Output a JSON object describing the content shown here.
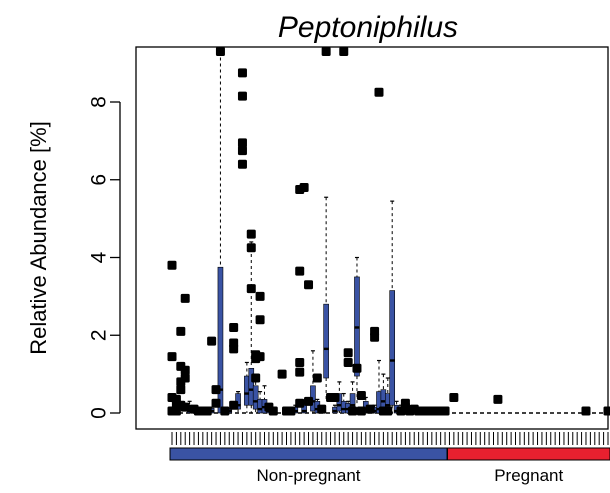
{
  "chart_data": {
    "type": "box",
    "title": "Peptoniphilus",
    "ylabel": "Relative Abundance [%]",
    "xlabel": "",
    "ylim": [
      -0.3,
      9.4
    ],
    "yticks": [
      0,
      2,
      4,
      6,
      8
    ],
    "ytick_labels": [
      "0",
      "2",
      "4",
      "6",
      "8"
    ],
    "grid": false,
    "groups": [
      {
        "name": "Non-pregnant",
        "color": "#3A53A4",
        "first": 1,
        "last": 63
      },
      {
        "name": "Pregnant",
        "color": "#E8202F",
        "first": 64,
        "last": 100
      }
    ],
    "n_samples": 100,
    "box_color": "#3A53A4",
    "boxes": [
      {
        "i": 5,
        "q1": 0,
        "median": 0.05,
        "q3": 0.2,
        "whisker_low": 0,
        "whisker_high": 0.3
      },
      {
        "i": 10,
        "q1": 0,
        "median": 0.05,
        "q3": 0.12,
        "whisker_low": 0,
        "whisker_high": 0.15
      },
      {
        "i": 12,
        "q1": 0,
        "median": 0.6,
        "q3": 3.75,
        "whisker_low": 0,
        "whisker_high": 9.3
      },
      {
        "i": 14,
        "q1": 0,
        "median": 0.05,
        "q3": 0.1,
        "whisker_low": 0,
        "whisker_high": 0.1
      },
      {
        "i": 16,
        "q1": 0.1,
        "median": 0.2,
        "q3": 0.5,
        "whisker_low": 0,
        "whisker_high": 0.55
      },
      {
        "i": 18,
        "q1": 0.2,
        "median": 0.5,
        "q3": 0.95,
        "whisker_low": 0,
        "whisker_high": 1.3
      },
      {
        "i": 19,
        "q1": 0.2,
        "median": 0.6,
        "q3": 1.15,
        "whisker_low": 0,
        "whisker_high": 4.4
      },
      {
        "i": 20,
        "q1": 0.1,
        "median": 0.3,
        "q3": 0.7,
        "whisker_low": 0,
        "whisker_high": 0.8
      },
      {
        "i": 21,
        "q1": 0,
        "median": 0.1,
        "q3": 0.35,
        "whisker_low": 0,
        "whisker_high": 0.55
      },
      {
        "i": 22,
        "q1": 0,
        "median": 0.15,
        "q3": 0.35,
        "whisker_low": 0,
        "whisker_high": 0.7
      },
      {
        "i": 23,
        "q1": 0,
        "median": 0.05,
        "q3": 0.1,
        "whisker_low": 0,
        "whisker_high": 0.2
      },
      {
        "i": 29,
        "q1": 0,
        "median": 0.05,
        "q3": 0.15,
        "whisker_low": 0,
        "whisker_high": 0.2
      },
      {
        "i": 31,
        "q1": 0,
        "median": 0.05,
        "q3": 0.2,
        "whisker_low": 0,
        "whisker_high": 0.3
      },
      {
        "i": 33,
        "q1": 0.05,
        "median": 0.3,
        "q3": 0.7,
        "whisker_low": 0,
        "whisker_high": 1.6
      },
      {
        "i": 34,
        "q1": 0,
        "median": 0.1,
        "q3": 0.3,
        "whisker_low": 0,
        "whisker_high": 0.35
      },
      {
        "i": 36,
        "q1": 0.9,
        "median": 1.65,
        "q3": 2.8,
        "whisker_low": 0.3,
        "whisker_high": 5.55
      },
      {
        "i": 38,
        "q1": 0,
        "median": 0.05,
        "q3": 0.15,
        "whisker_low": 0,
        "whisker_high": 0.2
      },
      {
        "i": 39,
        "q1": 0.05,
        "median": 0.2,
        "q3": 0.5,
        "whisker_low": 0,
        "whisker_high": 0.8
      },
      {
        "i": 40,
        "q1": 0,
        "median": 0.1,
        "q3": 0.3,
        "whisker_low": 0,
        "whisker_high": 0.5
      },
      {
        "i": 41,
        "q1": 0,
        "median": 0.1,
        "q3": 0.25,
        "whisker_low": 0,
        "whisker_high": 0.3
      },
      {
        "i": 42,
        "q1": 0.05,
        "median": 0.2,
        "q3": 0.5,
        "whisker_low": 0,
        "whisker_high": 0.8
      },
      {
        "i": 43,
        "q1": 0.95,
        "median": 2.2,
        "q3": 3.5,
        "whisker_low": 0.2,
        "whisker_high": 4.0
      },
      {
        "i": 45,
        "q1": 0,
        "median": 0.1,
        "q3": 0.3,
        "whisker_low": 0,
        "whisker_high": 0.4
      },
      {
        "i": 47,
        "q1": 0,
        "median": 0.05,
        "q3": 0.15,
        "whisker_low": 0,
        "whisker_high": 0.2
      },
      {
        "i": 48,
        "q1": 0,
        "median": 0.1,
        "q3": 0.55,
        "whisker_low": 0,
        "whisker_high": 1.35
      },
      {
        "i": 49,
        "q1": 0.05,
        "median": 0.3,
        "q3": 0.6,
        "whisker_low": 0,
        "whisker_high": 1.0
      },
      {
        "i": 50,
        "q1": 0.05,
        "median": 0.2,
        "q3": 0.5,
        "whisker_low": 0,
        "whisker_high": 0.9
      },
      {
        "i": 51,
        "q1": 0.2,
        "median": 1.35,
        "q3": 3.15,
        "whisker_low": 0,
        "whisker_high": 5.45
      },
      {
        "i": 52,
        "q1": 0,
        "median": 0.05,
        "q3": 0.2,
        "whisker_low": 0,
        "whisker_high": 0.3
      },
      {
        "i": 53,
        "q1": 0,
        "median": 0.05,
        "q3": 0.1,
        "whisker_low": 0,
        "whisker_high": 0.2
      }
    ],
    "outliers": [
      [
        1,
        3.8
      ],
      [
        1,
        1.45
      ],
      [
        1,
        0.4
      ],
      [
        1,
        0.05
      ],
      [
        2,
        0.35
      ],
      [
        2,
        0.2
      ],
      [
        2,
        0.05
      ],
      [
        3,
        2.1
      ],
      [
        3,
        1.2
      ],
      [
        3,
        0.8
      ],
      [
        3,
        0.6
      ],
      [
        3,
        0.2
      ],
      [
        4,
        2.95
      ],
      [
        4,
        1.1
      ],
      [
        4,
        0.9
      ],
      [
        4,
        0.15
      ],
      [
        6,
        0.1
      ],
      [
        7,
        0.05
      ],
      [
        8,
        0.05
      ],
      [
        9,
        0.05
      ],
      [
        10,
        1.85
      ],
      [
        11,
        0.25
      ],
      [
        11,
        0.6
      ],
      [
        12,
        9.3
      ],
      [
        13,
        0.05
      ],
      [
        15,
        2.2
      ],
      [
        15,
        1.8
      ],
      [
        15,
        1.65
      ],
      [
        15,
        0.2
      ],
      [
        17,
        8.75
      ],
      [
        17,
        8.15
      ],
      [
        17,
        6.95
      ],
      [
        17,
        6.75
      ],
      [
        17,
        6.4
      ],
      [
        19,
        4.6
      ],
      [
        19,
        4.25
      ],
      [
        19,
        3.2
      ],
      [
        20,
        1.5
      ],
      [
        20,
        1.4
      ],
      [
        20,
        0.9
      ],
      [
        21,
        3.0
      ],
      [
        21,
        2.4
      ],
      [
        21,
        1.45
      ],
      [
        23,
        0.15
      ],
      [
        24,
        0.05
      ],
      [
        26,
        1.0
      ],
      [
        27,
        0.05
      ],
      [
        28,
        0.05
      ],
      [
        30,
        5.75
      ],
      [
        30,
        3.65
      ],
      [
        30,
        1.3
      ],
      [
        30,
        1.05
      ],
      [
        30,
        0.25
      ],
      [
        31,
        5.8
      ],
      [
        32,
        3.3
      ],
      [
        32,
        0.3
      ],
      [
        34,
        0.9
      ],
      [
        35,
        0.1
      ],
      [
        36,
        9.3
      ],
      [
        37,
        0.4
      ],
      [
        38,
        0.4
      ],
      [
        40,
        9.3
      ],
      [
        41,
        1.55
      ],
      [
        41,
        1.3
      ],
      [
        42,
        0.05
      ],
      [
        43,
        1.15
      ],
      [
        44,
        0.05
      ],
      [
        44,
        0.45
      ],
      [
        46,
        0.1
      ],
      [
        47,
        2.1
      ],
      [
        47,
        1.95
      ],
      [
        48,
        8.25
      ],
      [
        49,
        0.05
      ],
      [
        50,
        0.05
      ],
      [
        53,
        0.05
      ],
      [
        54,
        0.25
      ],
      [
        54,
        0.15
      ],
      [
        55,
        0.05
      ],
      [
        56,
        0.1
      ],
      [
        57,
        0.05
      ],
      [
        58,
        0.05
      ],
      [
        59,
        0.05
      ],
      [
        60,
        0.05
      ],
      [
        61,
        0.05
      ],
      [
        62,
        0.05
      ],
      [
        63,
        0.05
      ],
      [
        65,
        0.4
      ],
      [
        75,
        0.35
      ],
      [
        95,
        0.05
      ],
      [
        100,
        0.05
      ]
    ]
  }
}
